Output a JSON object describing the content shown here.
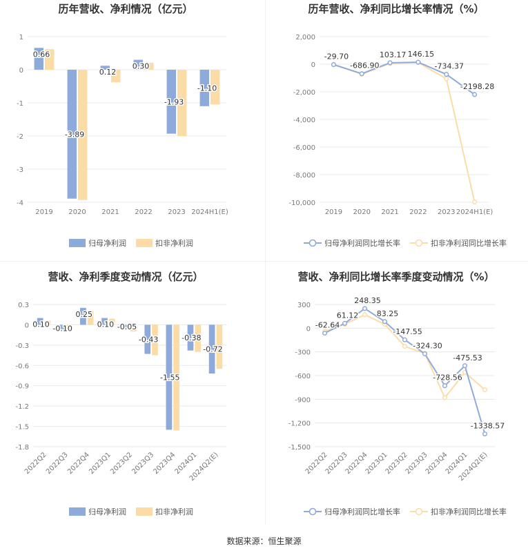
{
  "source": "数据来源：恒生聚源",
  "colors": {
    "bar_primary": "#8eaadb",
    "bar_secondary": "#fcdca6",
    "line_primary": "#8eaadb",
    "line_secondary": "#fcdca6",
    "grid": "#e8e8e8",
    "axis_text": "#777777",
    "label_text": "#333333",
    "title_text": "#333333"
  },
  "chart_data": [
    {
      "id": "annual-profit",
      "type": "bar",
      "title": "历年营收、净利情况（亿元）",
      "categories": [
        "2019",
        "2020",
        "2021",
        "2022",
        "2023",
        "2024H1(E)"
      ],
      "series": [
        {
          "name": "归母净利润",
          "values": [
            0.66,
            -3.89,
            0.12,
            0.3,
            -1.93,
            -1.1
          ]
        },
        {
          "name": "扣非净利润",
          "values": [
            0.62,
            -3.93,
            -0.38,
            0.21,
            -2.0,
            -1.05
          ]
        }
      ],
      "labels": [
        "0.66",
        "-3.89",
        "0.12",
        "0.30",
        "-1.93",
        "-1.10"
      ],
      "ylim": [
        -4,
        1
      ],
      "yticks": [
        1,
        0,
        -1,
        -2,
        -3,
        -4
      ],
      "ytick_labels": [
        "1",
        "0",
        "-1",
        "-2",
        "-3",
        "-4"
      ],
      "legend_position": "bottom"
    },
    {
      "id": "annual-growth",
      "type": "line",
      "title": "历年营收、净利同比增长率情况（%）",
      "categories": [
        "2019",
        "2020",
        "2021",
        "2022",
        "2023",
        "2024H1(E)"
      ],
      "series": [
        {
          "name": "归母净利润同比增长率",
          "values": [
            -29.7,
            -686.9,
            103.17,
            146.15,
            -734.37,
            -2198.28
          ]
        },
        {
          "name": "扣非净利润同比增长率",
          "values": [
            -30,
            -720,
            60,
            120,
            -1050,
            -9980
          ]
        }
      ],
      "labels": [
        "-29.70",
        "-686.90",
        "103.17",
        "146.15",
        "-734.37",
        "-2198.28"
      ],
      "ylim": [
        -10000,
        2000
      ],
      "yticks": [
        2000,
        0,
        -2000,
        -4000,
        -6000,
        -8000,
        -10000
      ],
      "ytick_labels": [
        "2,000",
        "0",
        "-2,000",
        "-4,000",
        "-6,000",
        "-8,000",
        "-10,000"
      ],
      "legend_position": "bottom"
    },
    {
      "id": "quarterly-profit",
      "type": "bar",
      "title": "营收、净利季度变动情况（亿元）",
      "categories": [
        "2022Q2",
        "2022Q3",
        "2022Q4",
        "2023Q1",
        "2023Q2",
        "2023Q3",
        "2023Q4",
        "2024Q1",
        "2024Q2(E)"
      ],
      "series": [
        {
          "name": "归母净利润",
          "values": [
            0.1,
            -0.1,
            0.25,
            0.1,
            -0.05,
            -0.43,
            -1.55,
            -0.38,
            -0.72
          ]
        },
        {
          "name": "扣非净利润",
          "values": [
            0.06,
            -0.1,
            0.2,
            0.09,
            -0.1,
            -0.45,
            -1.56,
            -0.4,
            -0.65
          ]
        }
      ],
      "labels": [
        "0.10",
        "-0.10",
        "0.25",
        "0.10",
        "-0.05",
        "-0.43",
        "-1.55",
        "-0.38",
        "-0.72"
      ],
      "ylim": [
        -1.8,
        0.3
      ],
      "yticks": [
        0.3,
        0,
        -0.3,
        -0.6,
        -0.9,
        -1.2,
        -1.5,
        -1.8
      ],
      "ytick_labels": [
        "0.3",
        "0",
        "-0.3",
        "-0.6",
        "-0.9",
        "-1.2",
        "-1.5",
        "-1.8"
      ],
      "legend_position": "bottom"
    },
    {
      "id": "quarterly-growth",
      "type": "line",
      "title": "营收、净利同比增长率季度变动情况（%）",
      "categories": [
        "2022Q2",
        "2022Q3",
        "2022Q4",
        "2023Q1",
        "2023Q2",
        "2023Q3",
        "2023Q4",
        "2024Q1",
        "2024Q2(E)"
      ],
      "series": [
        {
          "name": "归母净利润同比增长率",
          "values": [
            -62.64,
            61.12,
            248.35,
            83.25,
            -147.55,
            -324.3,
            -728.56,
            -475.53,
            -1338.57
          ]
        },
        {
          "name": "扣非净利润同比增长率",
          "values": [
            -40,
            50,
            170,
            50,
            -230,
            -320,
            -880,
            -560,
            -780
          ]
        }
      ],
      "labels": [
        "-62.64",
        "61.12",
        "248.35",
        "83.25",
        "-147.55",
        "-324.30",
        "-728.56",
        "-475.53",
        "-1338.57"
      ],
      "ylim": [
        -1500,
        300
      ],
      "yticks": [
        300,
        0,
        -300,
        -600,
        -900,
        -1200,
        -1500
      ],
      "ytick_labels": [
        "300",
        "0",
        "-300",
        "-600",
        "-900",
        "-1,200",
        "-1,500"
      ],
      "legend_position": "bottom"
    }
  ]
}
